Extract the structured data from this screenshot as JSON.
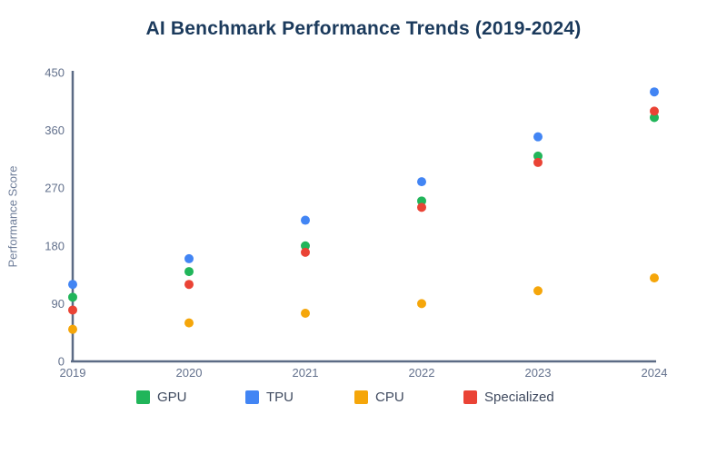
{
  "chart_data": {
    "type": "scatter",
    "title": "AI Benchmark Performance Trends (2019-2024)",
    "xlabel": "",
    "ylabel": "Performance Score",
    "categories": [
      "2019",
      "2020",
      "2021",
      "2022",
      "2023",
      "2024"
    ],
    "series": [
      {
        "name": "GPU",
        "color": "#21b55a",
        "values": [
          100,
          140,
          180,
          250,
          320,
          380
        ]
      },
      {
        "name": "TPU",
        "color": "#4285f4",
        "values": [
          120,
          160,
          220,
          280,
          350,
          420
        ]
      },
      {
        "name": "CPU",
        "color": "#f5a60a",
        "values": [
          50,
          60,
          75,
          90,
          110,
          130
        ]
      },
      {
        "name": "Specialized",
        "color": "#ea4335",
        "values": [
          80,
          120,
          170,
          240,
          310,
          390
        ]
      }
    ],
    "ylim": [
      0,
      450
    ],
    "yticks": [
      0,
      90,
      180,
      270,
      360,
      450
    ],
    "grid": false,
    "legend_position": "bottom",
    "axis_color": "#5c6b85",
    "marker_radius": 5
  }
}
